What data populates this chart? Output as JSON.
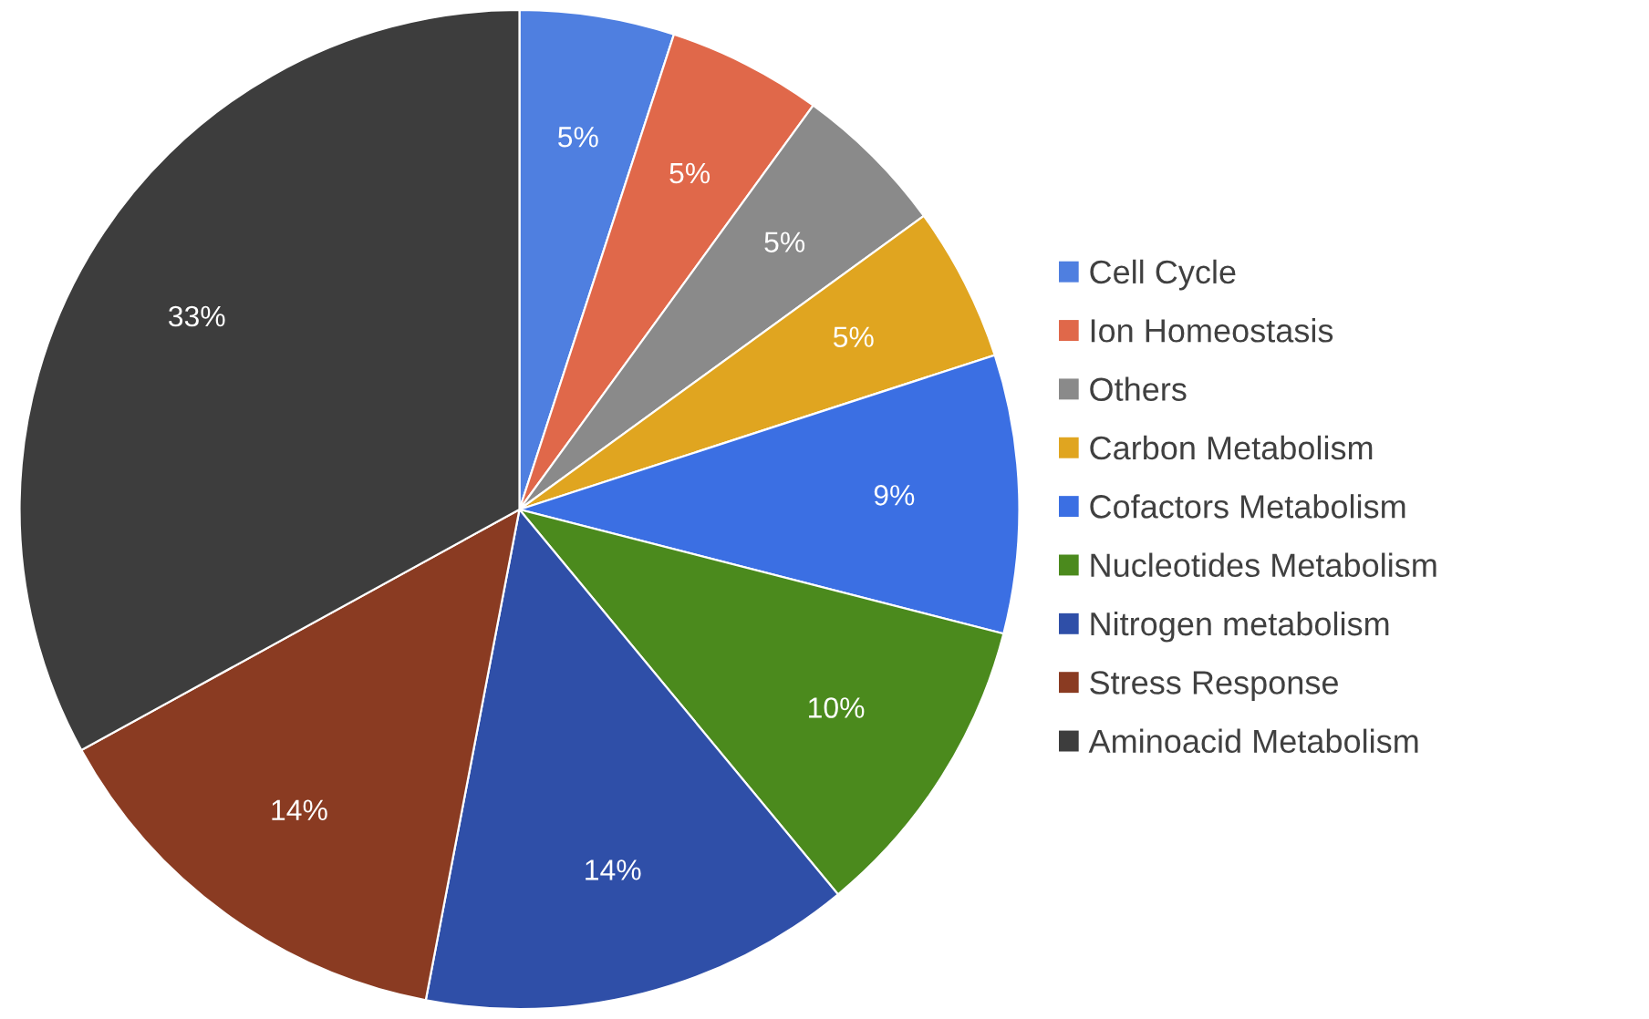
{
  "chart_data": {
    "type": "pie",
    "categories": [
      "Cell Cycle",
      "Ion Homeostasis",
      "Others",
      "Carbon Metabolism",
      "Cofactors Metabolism",
      "Nucleotides Metabolism",
      "Nitrogen metabolism",
      "Stress Response",
      "Aminoacid Metabolism"
    ],
    "values": [
      5,
      5,
      5,
      5,
      9,
      10,
      14,
      14,
      33
    ],
    "value_labels": [
      "5%",
      "5%",
      "5%",
      "5%",
      "9%",
      "10%",
      "14%",
      "14%",
      "33%"
    ],
    "colors": [
      "#4f7fe0",
      "#e0684a",
      "#8a8a8a",
      "#e0a520",
      "#3b6fe3",
      "#4b8a1d",
      "#2f4fa8",
      "#8a3b22",
      "#3d3d3d"
    ],
    "legend": "right"
  }
}
